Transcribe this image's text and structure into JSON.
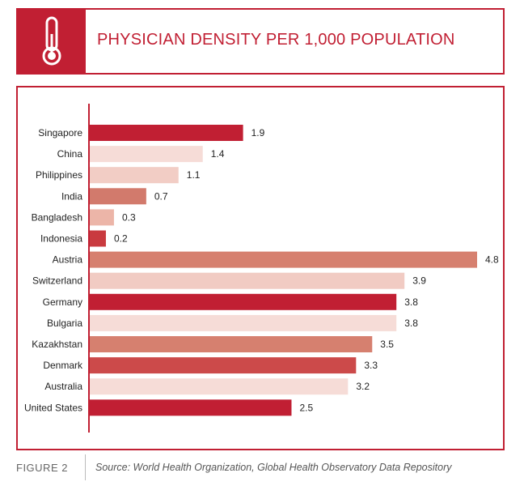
{
  "title": "PHYSICIAN DENSITY PER 1,000 POPULATION",
  "icon": "thermometer-icon",
  "figure_label": "FIGURE 2",
  "source": "Source: World Health Organization, Global Health Observatory Data Repository",
  "colors": {
    "accent": "#c11f33",
    "bar_dark": "#c11f33",
    "bar_medium": "#d6695b",
    "bar_mid": "#d27a6c",
    "bar_light": "#ecb5a8",
    "bar_pale": "#f6dcd7"
  },
  "chart_data": {
    "type": "bar",
    "orientation": "horizontal",
    "title": "PHYSICIAN DENSITY PER 1,000 POPULATION",
    "xlabel": "",
    "ylabel": "",
    "xlim": [
      0,
      4.8
    ],
    "grid": false,
    "categories": [
      "Singapore",
      "China",
      "Philippines",
      "India",
      "Bangladesh",
      "Indonesia",
      "Austria",
      "Switzerland",
      "Germany",
      "Bulgaria",
      "Kazakhstan",
      "Denmark",
      "Australia",
      "United States"
    ],
    "values": [
      1.9,
      1.4,
      1.1,
      0.7,
      0.3,
      0.2,
      4.8,
      3.9,
      3.8,
      3.8,
      3.5,
      3.3,
      3.2,
      2.5
    ],
    "labels": [
      "1.9",
      "1.4",
      "1.1",
      "0.7",
      "0.3",
      "0.2",
      "4.8",
      "3.9",
      "3.8",
      "3.8",
      "3.5",
      "3.3",
      "3.2",
      "2.5"
    ],
    "bar_colors": [
      "#c11f33",
      "#f6dcd7",
      "#f2cdc5",
      "#d27a6c",
      "#ecb5a8",
      "#c93a3f",
      "#d6806f",
      "#f1cbc3",
      "#c11f33",
      "#f6dcd7",
      "#d6806f",
      "#cc4a4a",
      "#f6dcd7",
      "#c11f33"
    ]
  }
}
